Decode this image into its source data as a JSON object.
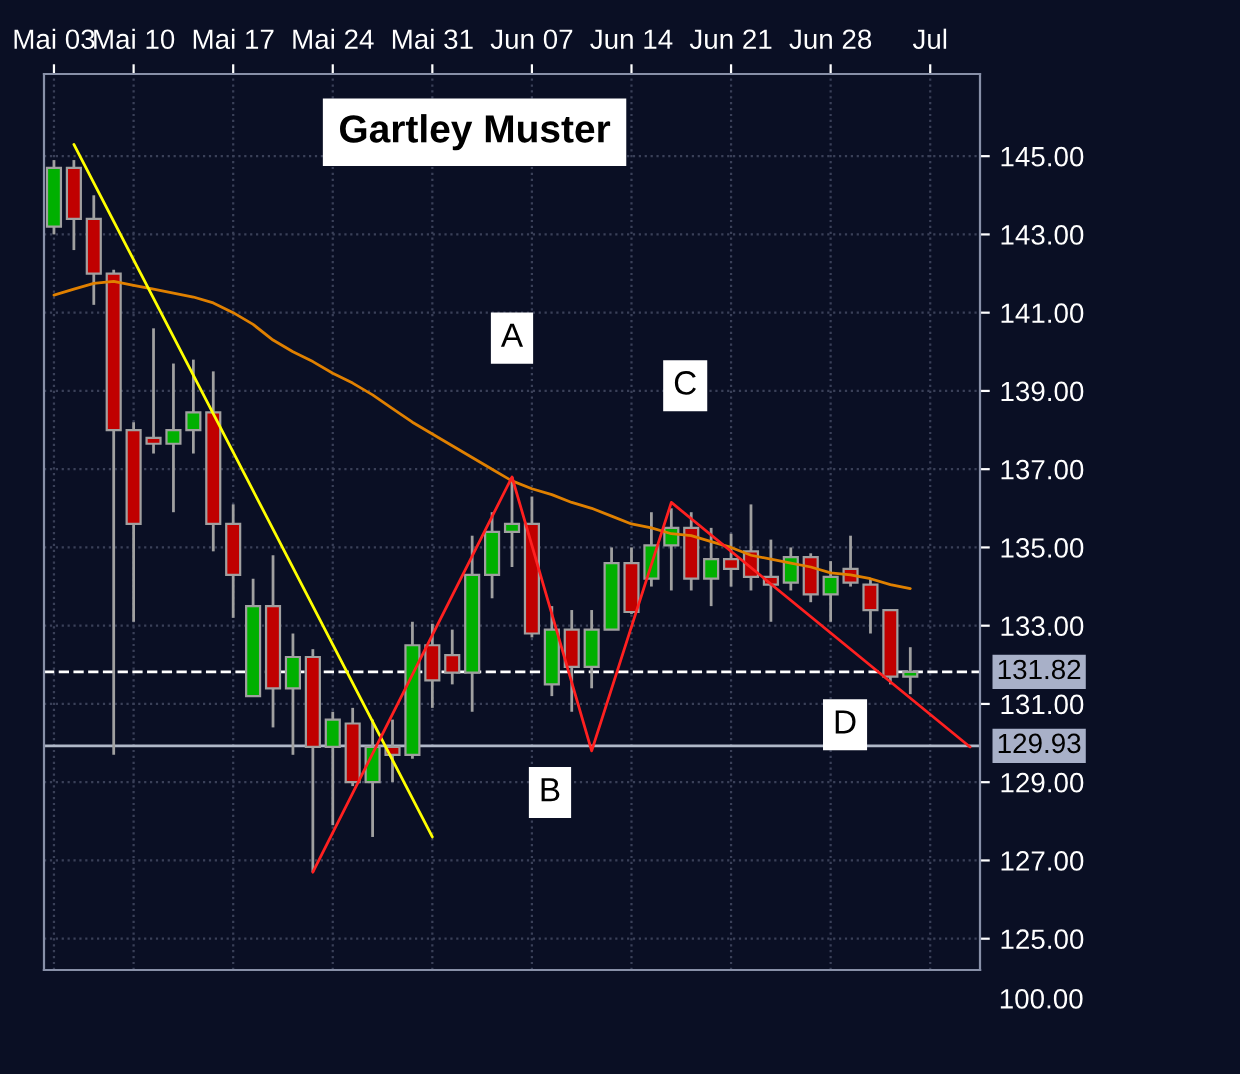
{
  "chart_data": [
    {
      "type": "candlestick",
      "title": "Gartley Muster",
      "categories": [
        "Mai 03",
        null,
        null,
        null,
        "Mai 10",
        null,
        null,
        null,
        null,
        "Mai 17",
        null,
        null,
        null,
        null,
        "Mai 24",
        null,
        null,
        null,
        null,
        "Mai 31",
        null,
        null,
        null,
        null,
        "Jun 07",
        null,
        null,
        null,
        null,
        "Jun 14",
        null,
        null,
        null,
        null,
        "Jun 21",
        null,
        null,
        null,
        null,
        "Jun 28",
        null,
        null,
        null,
        null,
        "Jul",
        null,
        null
      ],
      "ohlc": [
        [
          143.2,
          144.9,
          143.0,
          144.7
        ],
        [
          144.7,
          144.9,
          142.6,
          143.4
        ],
        [
          143.4,
          144.0,
          141.2,
          142.0
        ],
        [
          142.0,
          142.1,
          129.7,
          138.0
        ],
        [
          138.0,
          138.2,
          133.1,
          135.6
        ],
        [
          137.8,
          140.6,
          137.4,
          137.65
        ],
        [
          137.65,
          139.7,
          135.9,
          138.0
        ],
        [
          138.0,
          139.8,
          137.4,
          138.45
        ],
        [
          138.45,
          139.5,
          134.9,
          135.6
        ],
        [
          135.6,
          136.1,
          133.2,
          134.3
        ],
        [
          131.2,
          134.2,
          131.2,
          133.5
        ],
        [
          133.5,
          134.8,
          130.4,
          131.4
        ],
        [
          131.4,
          132.8,
          129.7,
          132.2
        ],
        [
          132.2,
          132.4,
          126.7,
          129.9
        ],
        [
          129.9,
          130.8,
          127.9,
          130.6
        ],
        [
          130.5,
          130.9,
          128.9,
          129.0
        ],
        [
          129.0,
          130.6,
          127.6,
          129.9
        ],
        [
          129.9,
          130.6,
          129.0,
          129.7
        ],
        [
          129.7,
          133.1,
          129.6,
          132.5
        ],
        [
          132.5,
          133.05,
          130.9,
          131.6
        ],
        [
          132.25,
          132.9,
          131.5,
          131.8
        ],
        [
          131.8,
          135.3,
          130.8,
          134.3
        ],
        [
          134.3,
          135.9,
          133.7,
          135.4
        ],
        [
          135.4,
          136.8,
          134.5,
          135.6
        ],
        [
          135.6,
          136.3,
          132.7,
          132.8
        ],
        [
          131.5,
          133.5,
          131.2,
          132.9
        ],
        [
          132.9,
          133.4,
          130.8,
          131.95
        ],
        [
          131.95,
          133.4,
          131.4,
          132.9
        ],
        [
          132.9,
          135.0,
          132.9,
          134.6
        ],
        [
          134.6,
          135.0,
          133.3,
          133.35
        ],
        [
          134.2,
          135.9,
          134.0,
          135.05
        ],
        [
          135.05,
          136.0,
          133.9,
          135.5
        ],
        [
          135.5,
          135.9,
          133.9,
          134.2
        ],
        [
          134.2,
          135.5,
          133.5,
          134.7
        ],
        [
          134.7,
          135.35,
          134.0,
          134.45
        ],
        [
          134.9,
          136.1,
          133.9,
          134.25
        ],
        [
          134.25,
          135.2,
          133.1,
          134.05
        ],
        [
          134.1,
          135.0,
          133.9,
          134.75
        ],
        [
          134.75,
          134.85,
          133.6,
          133.8
        ],
        [
          133.8,
          134.65,
          133.1,
          134.25
        ],
        [
          134.45,
          135.3,
          134.0,
          134.1
        ],
        [
          134.05,
          134.2,
          132.8,
          133.4
        ],
        [
          133.4,
          133.4,
          131.5,
          131.7
        ],
        [
          131.7,
          132.45,
          131.25,
          131.82
        ],
        null,
        null,
        null
      ],
      "colors": [
        "#00b000",
        "#c00000",
        "#c00000",
        "#c00000",
        "#c00000",
        "#c00000",
        "#00b000",
        "#00b000",
        "#c00000",
        "#c00000",
        "#00b000",
        "#c00000",
        "#00b000",
        "#c00000",
        "#00b000",
        "#c00000",
        "#00b000",
        "#c00000",
        "#00b000",
        "#c00000",
        "#c00000",
        "#00b000",
        "#00b000",
        "#00b000",
        "#c00000",
        "#00b000",
        "#c00000",
        "#00b000",
        "#00b000",
        "#c00000",
        "#00b000",
        "#00b000",
        "#c00000",
        "#00b000",
        "#c00000",
        "#c00000",
        "#c00000",
        "#00b000",
        "#c00000",
        "#00b000",
        "#c00000",
        "#c00000",
        "#c00000",
        "#00b000",
        null,
        null,
        null
      ],
      "series": [
        {
          "type": "line",
          "color": "#e08000",
          "values": [
            141.45,
            141.6,
            141.75,
            141.8,
            141.7,
            141.6,
            141.5,
            141.4,
            141.25,
            141.0,
            140.7,
            140.3,
            140.0,
            139.75,
            139.45,
            139.2,
            138.9,
            138.55,
            138.2,
            137.9,
            137.6,
            137.3,
            137.0,
            136.7,
            136.5,
            136.35,
            136.15,
            136.0,
            135.8,
            135.6,
            135.5,
            135.35,
            135.3,
            135.15,
            135.0,
            134.8,
            134.7,
            134.6,
            134.5,
            134.35,
            134.3,
            134.2,
            134.05,
            133.95,
            null,
            null,
            null
          ]
        },
        {
          "type": "line",
          "color": "#ffff00",
          "values": [
            null,
            145.3,
            null,
            null,
            null,
            null,
            null,
            null,
            null,
            null,
            null,
            null,
            null,
            null,
            null,
            null,
            null,
            null,
            null,
            127.6,
            null,
            null,
            null,
            null,
            null,
            null,
            null,
            null,
            null,
            null,
            null,
            null,
            null,
            null,
            null,
            null,
            null,
            null,
            null,
            null,
            null,
            null,
            null,
            null,
            null,
            null,
            null
          ]
        },
        {
          "type": "line",
          "color": "#ff2020",
          "values": [
            null,
            null,
            null,
            null,
            null,
            null,
            null,
            null,
            null,
            null,
            null,
            null,
            null,
            126.7,
            null,
            null,
            null,
            null,
            null,
            null,
            null,
            null,
            null,
            136.8,
            null,
            null,
            null,
            129.8,
            null,
            null,
            null,
            136.15,
            null,
            null,
            null,
            null,
            null,
            null,
            null,
            null,
            null,
            null,
            null,
            null,
            null,
            null,
            129.9
          ]
        }
      ],
      "annotations": [
        "A",
        "B",
        "C",
        "D"
      ],
      "ref_lines": [
        {
          "axis": "y",
          "value": 131.82,
          "label": "131.82",
          "color": "#ffffff",
          "line_style": "dashed"
        },
        {
          "axis": "y",
          "value": 129.93,
          "label": "129.93",
          "color": "#b0b8c8",
          "line_style": "solid"
        }
      ],
      "ylim": [
        124.2,
        147.1
      ],
      "yticks": [
        {
          "value": 125,
          "label": "125.00"
        },
        {
          "value": 127,
          "label": "127.00"
        },
        {
          "value": 129,
          "label": "129.00"
        },
        {
          "value": 131,
          "label": "131.00"
        },
        {
          "value": 133,
          "label": "133.00"
        },
        {
          "value": 135,
          "label": "135.00"
        },
        {
          "value": 137,
          "label": "137.00"
        },
        {
          "value": 139,
          "label": "139.00"
        },
        {
          "value": 141,
          "label": "141.00"
        },
        {
          "value": 143,
          "label": "143.00"
        },
        {
          "value": 145,
          "label": "145.00"
        }
      ],
      "grid": true
    },
    {
      "type": "other",
      "annotations": [
        "100.00"
      ]
    }
  ]
}
